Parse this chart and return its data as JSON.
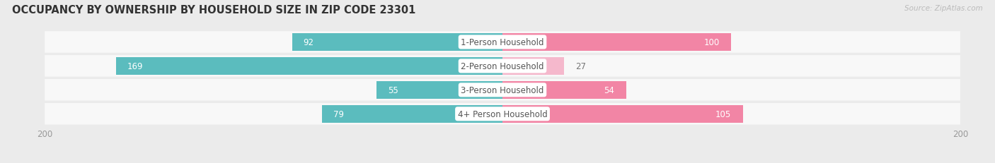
{
  "title": "OCCUPANCY BY OWNERSHIP BY HOUSEHOLD SIZE IN ZIP CODE 23301",
  "source": "Source: ZipAtlas.com",
  "categories": [
    "1-Person Household",
    "2-Person Household",
    "3-Person Household",
    "4+ Person Household"
  ],
  "owner_values": [
    92,
    169,
    55,
    79
  ],
  "renter_values": [
    100,
    27,
    54,
    105
  ],
  "owner_color": "#5bbcbe",
  "renter_color": "#f285a5",
  "renter_color_light": "#f5b8cc",
  "axis_limit": 200,
  "bg_color": "#ebebeb",
  "bar_bg_color": "#f8f8f8",
  "label_font_size": 8.5,
  "title_font_size": 10.5,
  "bar_height": 0.72,
  "inside_threshold": 30
}
